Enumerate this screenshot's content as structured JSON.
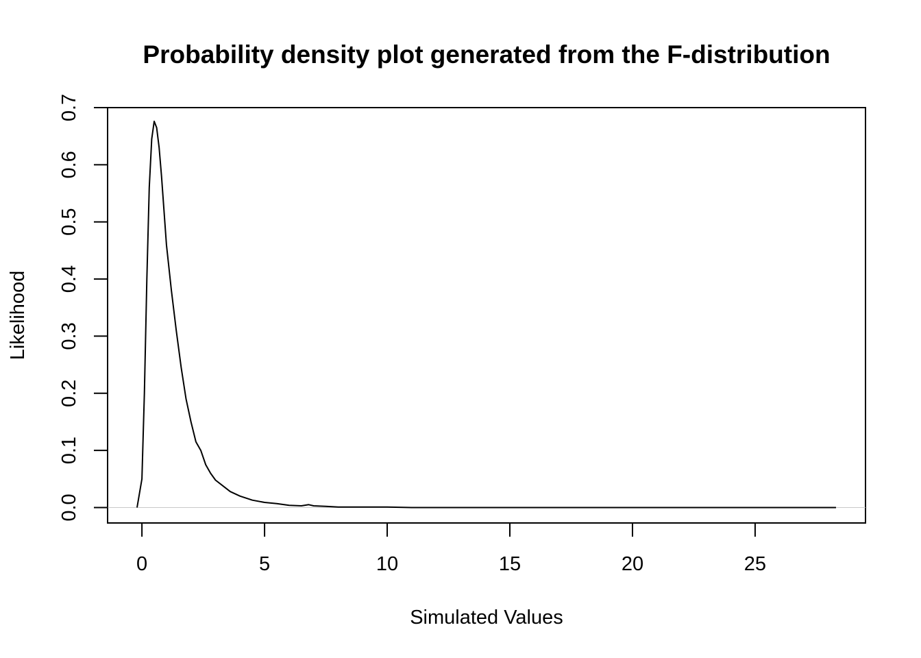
{
  "chart_data": {
    "type": "line",
    "title": "Probability density plot generated from the F-distribution",
    "xlabel": "Simulated Values",
    "ylabel": "Likelihood",
    "xlim": [
      -1.4,
      29.5
    ],
    "ylim": [
      -0.027,
      0.7
    ],
    "x_ticks": [
      "0",
      "5",
      "10",
      "15",
      "20",
      "25"
    ],
    "y_ticks": [
      "0.0",
      "0.1",
      "0.2",
      "0.3",
      "0.4",
      "0.5",
      "0.6",
      "0.7"
    ],
    "baseline": 0,
    "grid": false,
    "legend": "none",
    "series": [
      {
        "x": [
          -0.2,
          0.0,
          0.1,
          0.2,
          0.3,
          0.4,
          0.5,
          0.6,
          0.7,
          0.8,
          0.9,
          1.0,
          1.2,
          1.4,
          1.6,
          1.8,
          2.0,
          2.2,
          2.4,
          2.6,
          2.8,
          3.0,
          3.3,
          3.6,
          4.0,
          4.5,
          5.0,
          5.5,
          6.0,
          6.5,
          6.8,
          7.0,
          7.5,
          8.0,
          9.0,
          10.0,
          11.0,
          12.0,
          14.0,
          16.0,
          18.0,
          20.0,
          22.0,
          24.0,
          26.0,
          28.3
        ],
        "y": [
          0.0,
          0.05,
          0.2,
          0.4,
          0.56,
          0.645,
          0.676,
          0.665,
          0.63,
          0.58,
          0.52,
          0.46,
          0.38,
          0.31,
          0.245,
          0.19,
          0.15,
          0.115,
          0.1,
          0.075,
          0.06,
          0.048,
          0.038,
          0.028,
          0.02,
          0.013,
          0.009,
          0.007,
          0.004,
          0.003,
          0.005,
          0.003,
          0.002,
          0.001,
          0.001,
          0.001,
          0.0,
          0.0,
          0.0,
          0.0,
          0.0,
          0.0,
          0.0,
          0.0,
          0.0,
          0.0
        ],
        "color": "#000000"
      }
    ]
  }
}
